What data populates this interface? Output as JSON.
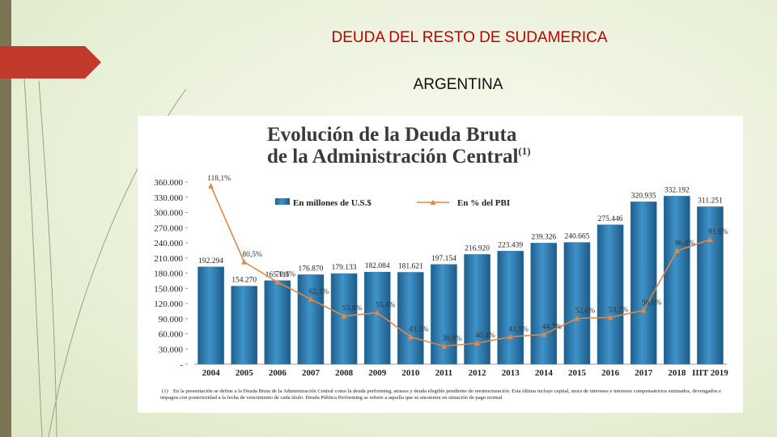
{
  "slide": {
    "title": "DEUDA DEL RESTO DE SUDAMERICA",
    "subtitle": "ARGENTINA"
  },
  "chart_data": {
    "type": "bar",
    "title": [
      "Evolución de la Deuda Bruta",
      "de la Administración Central"
    ],
    "title_note": "(1)",
    "categories": [
      "2004",
      "2005",
      "2006",
      "2007",
      "2008",
      "2009",
      "2010",
      "2011",
      "2012",
      "2013",
      "2014",
      "2015",
      "2016",
      "2017",
      "2018",
      "IIIT 2019"
    ],
    "series": [
      {
        "name": "En millones de U.S.$",
        "type": "bar",
        "color": "#2a78ad",
        "values": [
          192294,
          154270,
          165111,
          176870,
          179133,
          182084,
          181621,
          197154,
          216920,
          223439,
          239326,
          240665,
          275446,
          320935,
          332192,
          311251
        ],
        "value_labels": [
          "192.294",
          "154.270",
          "165.111",
          "176.870",
          "179.133",
          "182.084",
          "181.621",
          "197.154",
          "216.920",
          "223.439",
          "239.326",
          "240.665",
          "275.446",
          "320.935",
          "332.192",
          "311.251"
        ]
      },
      {
        "name": "En % del PBI",
        "type": "line",
        "axis": "y2",
        "color": "#e0874a",
        "values": [
          118.1,
          80.5,
          70.6,
          62.1,
          53.8,
          55.4,
          43.5,
          38.9,
          40.4,
          43.5,
          44.7,
          52.6,
          53.1,
          56.6,
          86.0,
          91.6
        ],
        "value_labels": [
          "118,1%",
          "80,5%",
          "70,6%",
          "62,1%",
          "53,8%",
          "55,4%",
          "43,5%",
          "38,9%",
          "40,4%",
          "43,5%",
          "44,7%",
          "52,6%",
          "53,1%",
          "56,6%",
          "86,0%",
          "91,6%"
        ]
      }
    ],
    "ylim": [
      0,
      360000
    ],
    "yticks": [
      {
        "value": 0,
        "label": "-"
      },
      {
        "value": 30000,
        "label": "30.000"
      },
      {
        "value": 60000,
        "label": "60.000"
      },
      {
        "value": 90000,
        "label": "90.000"
      },
      {
        "value": 120000,
        "label": "120.000"
      },
      {
        "value": 150000,
        "label": "150.000"
      },
      {
        "value": 180000,
        "label": "180.000"
      },
      {
        "value": 210000,
        "label": "210.000"
      },
      {
        "value": 240000,
        "label": "240.000"
      },
      {
        "value": 270000,
        "label": "270.000"
      },
      {
        "value": 300000,
        "label": "300.000"
      },
      {
        "value": 330000,
        "label": "330.000"
      },
      {
        "value": 360000,
        "label": "360.000"
      }
    ],
    "y2lim": [
      30,
      120
    ],
    "grid": false,
    "footnote_mark": "(1)",
    "footnote": "En la presentación se define a la Deuda Bruta de la Administración Central como la deuda performing, atrasos y deuda elegible pendiente de reestructuración. Esta última incluye capital, mora de intereses e intereses compensatorios estimados, devengados e impagos con posterioridad a la fecha de vencimiento de cada título. Deuda Pública Performing se refiere a aquella que se encuentra en situación de pago normal"
  }
}
